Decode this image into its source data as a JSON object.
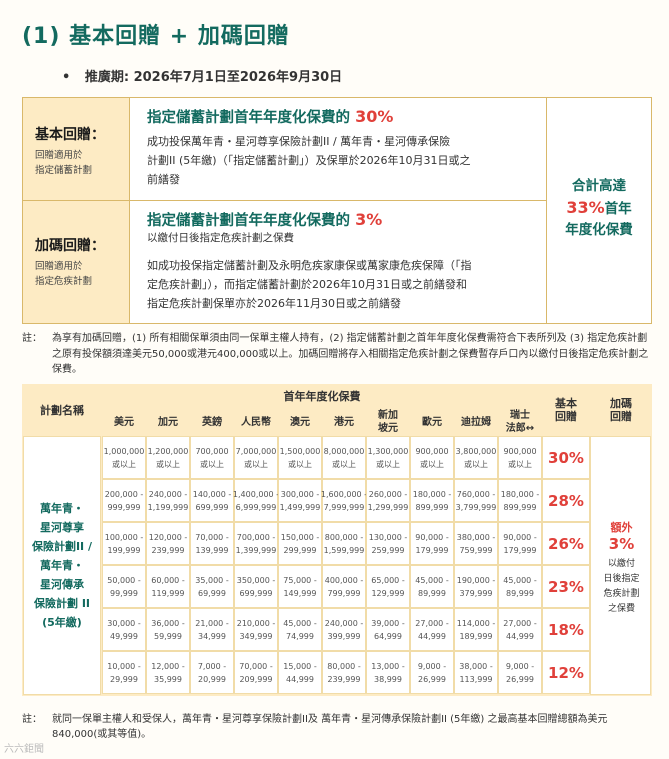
{
  "title": "(1) 基本回贈 + 加碼回贈",
  "period": {
    "bullet": "•",
    "text": "推廣期: 2026年7月1日至2026年9月30日"
  },
  "basic": {
    "heading": "基本回贈：",
    "sub1": "回贈適用於",
    "sub2": "指定儲蓄計劃",
    "title_pre": "指定儲蓄計劃首年年度化保費的",
    "title_pct": "30%",
    "line1": "成功投保萬年青・星河尊享保險計劃II / 萬年青・星河傳承保險",
    "line2": "計劃II (5年繳)（「指定儲蓄計劃」）及保單於2026年10月31日或之",
    "line3": "前繕發"
  },
  "bonus": {
    "heading": "加碼回贈：",
    "sub1": "回贈適用於",
    "sub2": "指定危疾計劃",
    "title_pre": "指定儲蓄計劃首年年度化保費的",
    "title_pct": "3%",
    "line1": "以繳付日後指定危疾計劃之保費",
    "line2": "如成功投保指定儲蓄計劃及永明危疾家康保或萬家康危疾保障（「指",
    "line3": "定危疾計劃」），而指定儲蓄計劃於2026年10月31日或之前繕發和",
    "line4": "指定危疾計劃保單亦於2026年11月30日或之前繕發"
  },
  "total": {
    "line1": "合計高達",
    "pct": "33%",
    "line1b": "首年",
    "line2": "年度化保費"
  },
  "note1": {
    "label": "註：",
    "text": "為享有加碼回贈，(1) 所有相關保單須由同一保單主權人持有，(2) 指定儲蓄計劃之首年年度化保費需符合下表所列及 (3) 指定危疾計劃之原有投保額須達美元50,000或港元400,000或以上。加碼回贈將存入相關指定危疾計劃之保費暫存戶口內以繳付日後指定危疾計劃之保費。"
  },
  "table": {
    "plan_header": "計劃名稱",
    "premium_header": "首年年度化保費",
    "basic_header": "基本\n回贈",
    "bonus_header": "加碼\n回贈",
    "currencies": [
      "美元",
      "加元",
      "英鎊",
      "人民幣",
      "澳元",
      "港元",
      "新加\n坡元",
      "歐元",
      "迪拉姆",
      "瑞士\n法郎↔"
    ],
    "plan_name": "萬年青・\n星河尊享\n保險計劃II /\n萬年青・\n星河傳承\n保險計劃 II\n(5年繳)",
    "rows": [
      {
        "cells": [
          "1,000,000\n或以上",
          "1,200,000\n或以上",
          "700,000\n或以上",
          "7,000,000\n或以上",
          "1,500,000\n或以上",
          "8,000,000\n或以上",
          "1,300,000\n或以上",
          "900,000\n或以上",
          "3,800,000\n或以上",
          "900,000\n或以上"
        ],
        "rebate": "30%"
      },
      {
        "cells": [
          "200,000 -\n999,999",
          "240,000 -\n1,199,999",
          "140,000 -\n699,999",
          "1,400,000 -\n6,999,999",
          "300,000 -\n1,499,999",
          "1,600,000 -\n7,999,999",
          "260,000 -\n1,299,999",
          "180,000 -\n899,999",
          "760,000 -\n3,799,999",
          "180,000 -\n899,999"
        ],
        "rebate": "28%"
      },
      {
        "cells": [
          "100,000 -\n199,999",
          "120,000 -\n239,999",
          "70,000 -\n139,999",
          "700,000 -\n1,399,999",
          "150,000 -\n299,999",
          "800,000 -\n1,599,999",
          "130,000 -\n259,999",
          "90,000 -\n179,999",
          "380,000 -\n759,999",
          "90,000 -\n179,999"
        ],
        "rebate": "26%"
      },
      {
        "cells": [
          "50,000 -\n99,999",
          "60,000 -\n119,999",
          "35,000 -\n69,999",
          "350,000 -\n699,999",
          "75,000 -\n149,999",
          "400,000 -\n799,999",
          "65,000 -\n129,999",
          "45,000 -\n89,999",
          "190,000 -\n379,999",
          "45,000 -\n89,999"
        ],
        "rebate": "23%"
      },
      {
        "cells": [
          "30,000 -\n49,999",
          "36,000 -\n59,999",
          "21,000 -\n34,999",
          "210,000 -\n349,999",
          "45,000 -\n74,999",
          "240,000 -\n399,999",
          "39,000 -\n64,999",
          "27,000 -\n44,999",
          "114,000 -\n189,999",
          "27,000 -\n44,999"
        ],
        "rebate": "18%"
      },
      {
        "cells": [
          "10,000 -\n29,999",
          "12,000 -\n35,999",
          "7,000 -\n20,999",
          "70,000 -\n209,999",
          "15,000 -\n44,999",
          "80,000 -\n239,999",
          "13,000 -\n38,999",
          "9,000 -\n26,999",
          "38,000 -\n113,999",
          "9,000 -\n26,999"
        ],
        "rebate": "12%"
      }
    ],
    "extra_label": "額外",
    "extra_pct": "3%",
    "extra_desc": "以繳付\n日後指定\n危疾計劃\n之保費"
  },
  "note2": {
    "label": "註：",
    "text": "就同一保單主權人和受保人，萬年青・星河尊享保險計劃II及 萬年青・星河傳承保險計劃II (5年繳) 之最高基本回贈總額為美元840,000(或其等值)。"
  },
  "watermark": "六六鉅聞"
}
